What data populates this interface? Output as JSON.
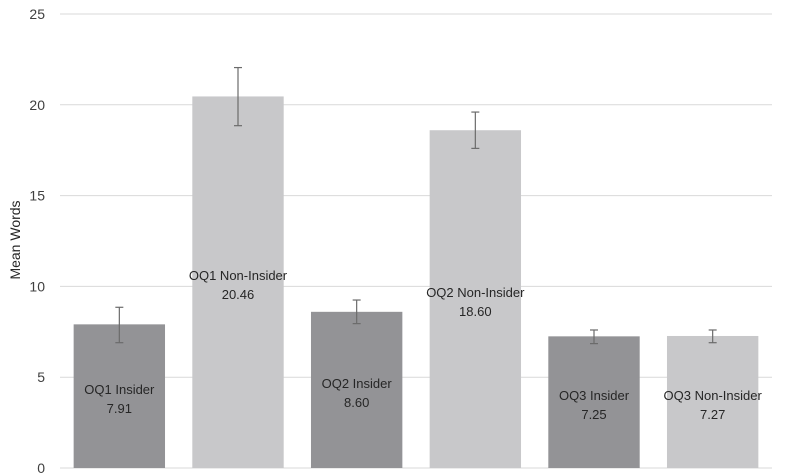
{
  "chart_data": {
    "type": "bar",
    "title": "",
    "xlabel": "",
    "ylabel": "Mean Words",
    "ylim": [
      0,
      25
    ],
    "yticks": [
      0,
      5,
      10,
      15,
      20,
      25
    ],
    "grid": true,
    "legend": "none",
    "bars": [
      {
        "label": "OQ1 Insider",
        "value": 7.91,
        "value_label": "7.91",
        "error_low": 6.9,
        "error_high": 8.85,
        "color": "#939396"
      },
      {
        "label": "OQ1 Non-Insider",
        "value": 20.46,
        "value_label": "20.46",
        "error_low": 18.85,
        "error_high": 22.05,
        "color": "#c8c8ca"
      },
      {
        "label": "OQ2 Insider",
        "value": 8.6,
        "value_label": "8.60",
        "error_low": 7.95,
        "error_high": 9.25,
        "color": "#939396"
      },
      {
        "label": "OQ2 Non-Insider",
        "value": 18.6,
        "value_label": "18.60",
        "error_low": 17.6,
        "error_high": 19.6,
        "color": "#c8c8ca"
      },
      {
        "label": "OQ3 Insider",
        "value": 7.25,
        "value_label": "7.25",
        "error_low": 6.85,
        "error_high": 7.6,
        "color": "#939396"
      },
      {
        "label": "OQ3 Non-Insider",
        "value": 7.27,
        "value_label": "7.27",
        "error_low": 6.9,
        "error_high": 7.6,
        "color": "#c8c8ca"
      }
    ]
  }
}
